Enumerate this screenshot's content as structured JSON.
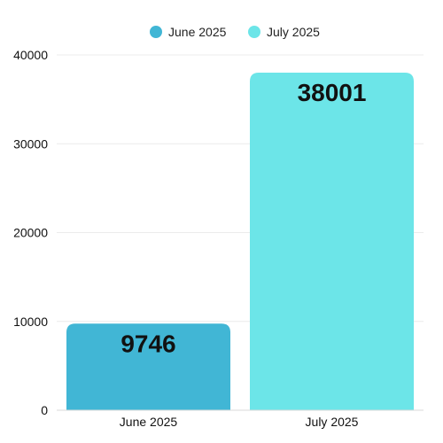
{
  "chart_data": {
    "type": "bar",
    "categories": [
      "June 2025",
      "July 2025"
    ],
    "series": [
      {
        "name": "June 2025",
        "color": "#41b6d5",
        "values": [
          9746,
          null
        ]
      },
      {
        "name": "July 2025",
        "color": "#6ce5e8",
        "values": [
          null,
          38001
        ]
      }
    ],
    "values": [
      9746,
      38001
    ],
    "data_labels": [
      "9746",
      "38001"
    ],
    "y_ticks": [
      "0",
      "10000",
      "20000",
      "30000",
      "40000"
    ],
    "ylim": [
      0,
      40000
    ],
    "grid": true,
    "legend_position": "top-center",
    "title": "",
    "xlabel": "",
    "ylabel": ""
  }
}
